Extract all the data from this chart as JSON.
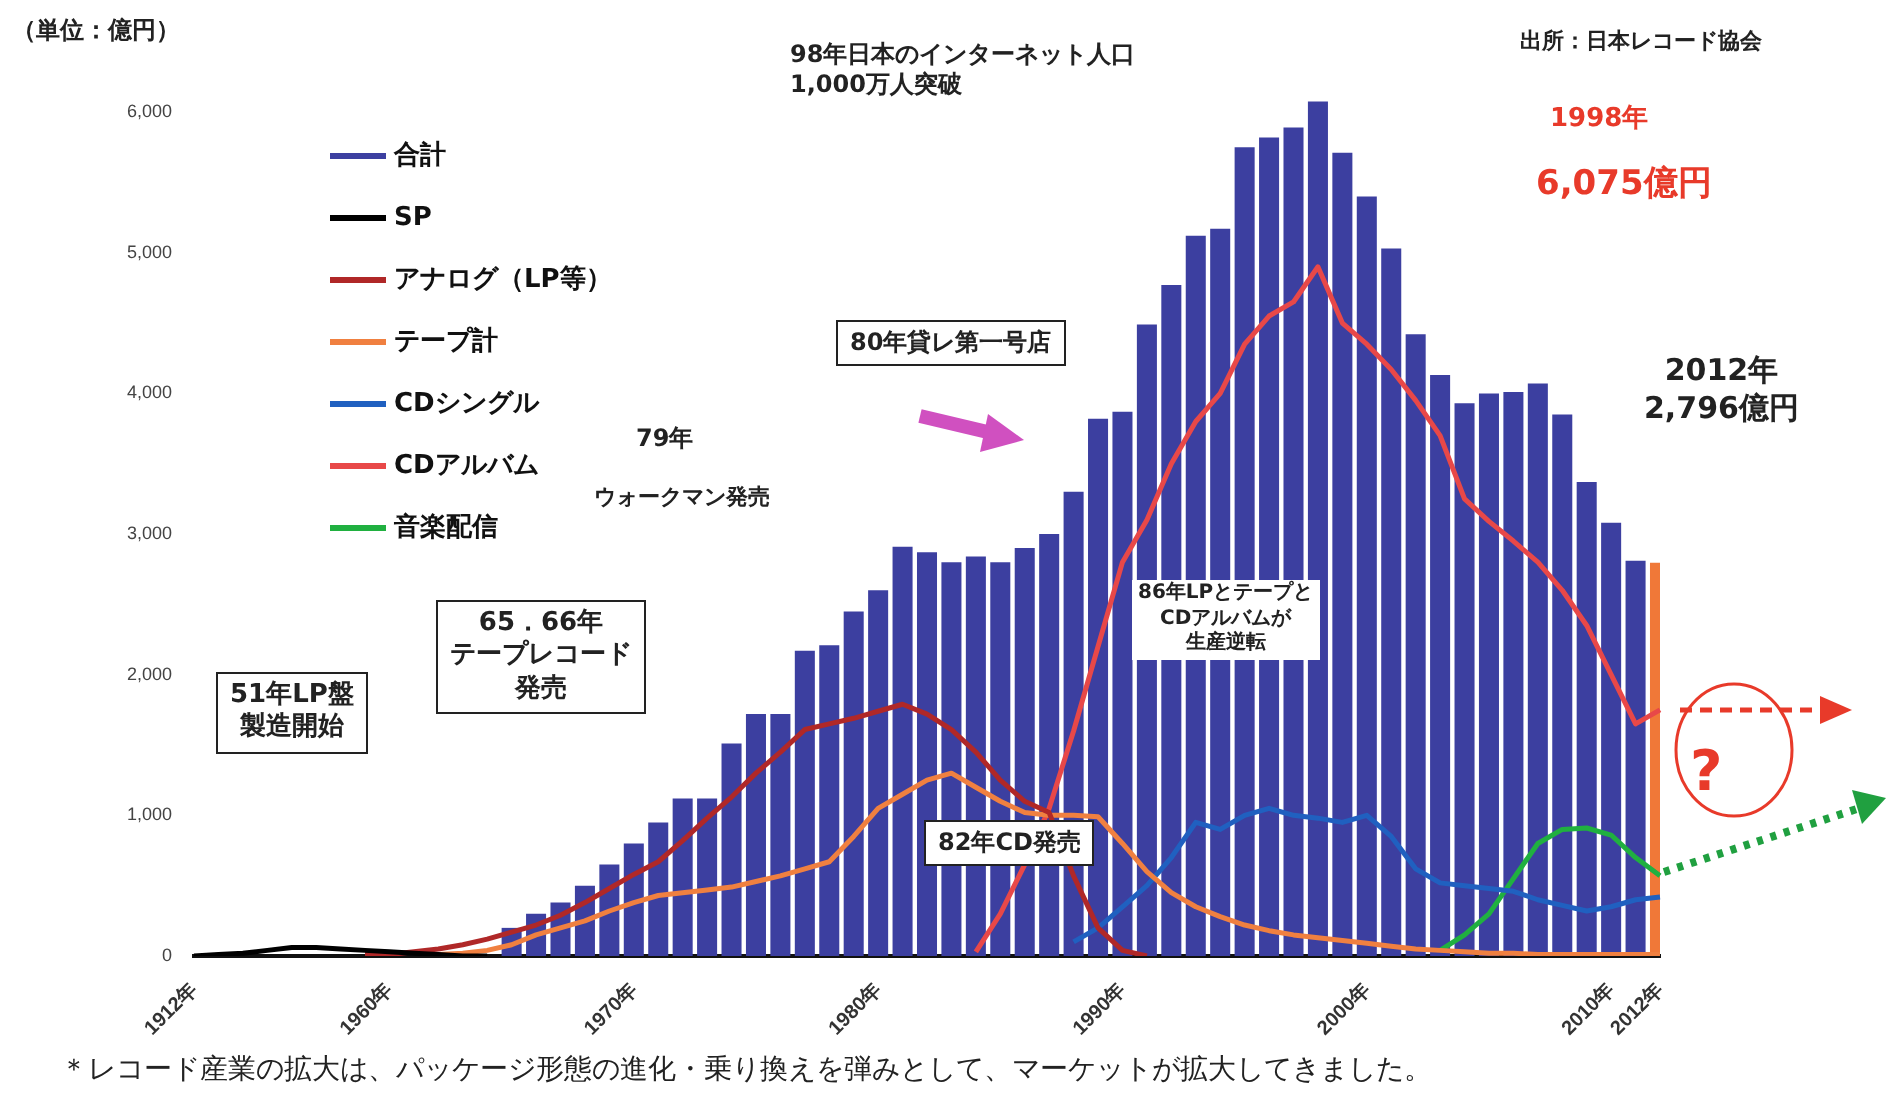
{
  "chart_data": {
    "type": "bar",
    "ylabel": "（単位：億円）",
    "categories": [
      "1912年",
      null,
      null,
      null,
      null,
      null,
      null,
      null,
      "1960年",
      null,
      null,
      null,
      null,
      null,
      null,
      null,
      null,
      null,
      "1970年",
      null,
      null,
      null,
      null,
      null,
      null,
      null,
      null,
      null,
      "1980年",
      null,
      null,
      null,
      null,
      null,
      null,
      null,
      null,
      null,
      "1990年",
      null,
      null,
      null,
      null,
      null,
      null,
      null,
      null,
      null,
      "2000年",
      null,
      null,
      null,
      null,
      null,
      null,
      null,
      null,
      null,
      "2010年",
      null,
      "2012年"
    ],
    "series": [
      {
        "name": "合計",
        "color": "#3c3fa0",
        "colors": [
          "#3c3fa0",
          "#3c3fa0",
          "#3c3fa0",
          "#3c3fa0",
          "#3c3fa0",
          "#3c3fa0",
          "#3c3fa0",
          "#3c3fa0",
          "#3c3fa0",
          "#3c3fa0",
          "#3c3fa0",
          "#3c3fa0",
          "#3c3fa0",
          "#3c3fa0",
          "#3c3fa0",
          "#3c3fa0",
          "#3c3fa0",
          "#3c3fa0",
          "#3c3fa0",
          "#3c3fa0",
          "#3c3fa0",
          "#3c3fa0",
          "#3c3fa0",
          "#3c3fa0",
          "#3c3fa0",
          "#3c3fa0",
          "#3c3fa0",
          "#3c3fa0",
          "#3c3fa0",
          "#3c3fa0",
          "#3c3fa0",
          "#3c3fa0",
          "#3c3fa0",
          "#3c3fa0",
          "#3c3fa0",
          "#3c3fa0",
          "#3c3fa0",
          "#3c3fa0",
          "#3c3fa0",
          "#3c3fa0",
          "#3c3fa0",
          "#3c3fa0",
          "#3c3fa0",
          "#3c3fa0",
          "#3c3fa0",
          "#3c3fa0",
          "#3c3fa0",
          "#3c3fa0",
          "#3c3fa0",
          "#3c3fa0",
          "#3c3fa0",
          "#3c3fa0",
          "#3c3fa0",
          "#3c3fa0",
          "#3c3fa0",
          "#3c3fa0",
          "#3c3fa0",
          "#3c3fa0",
          "#3c3fa0",
          "#3c3fa0",
          "#f07838"
        ],
        "values": [
          null,
          null,
          null,
          null,
          null,
          null,
          null,
          null,
          null,
          null,
          null,
          null,
          null,
          200,
          300,
          380,
          500,
          650,
          800,
          950,
          1120,
          1120,
          1510,
          1720,
          1720,
          2170,
          2210,
          2450,
          2600,
          2910,
          2870,
          2800,
          2840,
          2800,
          2900,
          3000,
          3300,
          3820,
          3870,
          4490,
          4770,
          5120,
          5170,
          5750,
          5820,
          5890,
          6075,
          5710,
          5400,
          5030,
          4420,
          4130,
          3930,
          4000,
          4010,
          4070,
          3850,
          3370,
          3080,
          2810,
          2796
        ]
      },
      {
        "name": "SP",
        "type": "line",
        "color": "#000000",
        "values": [
          0,
          10,
          20,
          40,
          60,
          60,
          50,
          40,
          30,
          20,
          10,
          0,
          0,
          null,
          null,
          null,
          null,
          null,
          null,
          null,
          null,
          null,
          null,
          null,
          null,
          null,
          null,
          null,
          null,
          null,
          null,
          null,
          null,
          null,
          null,
          null,
          null,
          null,
          null,
          null,
          null,
          null,
          null,
          null,
          null,
          null,
          null,
          null,
          null,
          null,
          null,
          null,
          null,
          null,
          null,
          null,
          null,
          null,
          null,
          null,
          null
        ]
      },
      {
        "name": "アナログ（LP等）",
        "type": "line",
        "color": "#b02828",
        "values": [
          null,
          null,
          null,
          null,
          null,
          null,
          null,
          10,
          10,
          30,
          50,
          80,
          120,
          170,
          220,
          290,
          380,
          480,
          580,
          670,
          820,
          980,
          1130,
          1300,
          1450,
          1610,
          1650,
          1690,
          1740,
          1790,
          1720,
          1610,
          1450,
          1250,
          1100,
          1020,
          570,
          200,
          40,
          0,
          null,
          null,
          null,
          null,
          null,
          null,
          null,
          null,
          null,
          null,
          null,
          null,
          null,
          null,
          null,
          null,
          null,
          null,
          null,
          null,
          null
        ]
      },
      {
        "name": "テープ計",
        "type": "line",
        "color": "#f08040",
        "values": [
          null,
          null,
          null,
          null,
          null,
          null,
          null,
          null,
          null,
          null,
          10,
          20,
          40,
          80,
          150,
          200,
          250,
          320,
          380,
          430,
          450,
          470,
          490,
          530,
          570,
          620,
          670,
          850,
          1050,
          1150,
          1250,
          1300,
          1200,
          1100,
          1020,
          1000,
          1000,
          990,
          800,
          600,
          450,
          350,
          280,
          220,
          180,
          150,
          130,
          110,
          90,
          70,
          50,
          40,
          30,
          20,
          20,
          10,
          10,
          10,
          10,
          10,
          10
        ]
      },
      {
        "name": "CDシングル",
        "type": "line",
        "color": "#2060c0",
        "values": [
          null,
          null,
          null,
          null,
          null,
          null,
          null,
          null,
          null,
          null,
          null,
          null,
          null,
          null,
          null,
          null,
          null,
          null,
          null,
          null,
          null,
          null,
          null,
          null,
          null,
          null,
          null,
          null,
          null,
          null,
          null,
          null,
          null,
          null,
          null,
          null,
          100,
          200,
          350,
          500,
          700,
          950,
          900,
          1000,
          1050,
          1000,
          980,
          950,
          1000,
          850,
          620,
          520,
          500,
          480,
          460,
          400,
          360,
          320,
          350,
          400,
          420
        ]
      },
      {
        "name": "CDアルバム",
        "type": "line",
        "color": "#e84848",
        "values": [
          null,
          null,
          null,
          null,
          null,
          null,
          null,
          null,
          null,
          null,
          null,
          null,
          null,
          null,
          null,
          null,
          null,
          null,
          null,
          null,
          null,
          null,
          null,
          null,
          null,
          null,
          null,
          null,
          null,
          null,
          null,
          null,
          30,
          300,
          650,
          1050,
          1600,
          2200,
          2800,
          3100,
          3500,
          3800,
          4000,
          4350,
          4550,
          4650,
          4900,
          4500,
          4350,
          4170,
          3950,
          3700,
          3250,
          3090,
          2950,
          2800,
          2600,
          2350,
          2000,
          1650,
          1750
        ]
      },
      {
        "name": "音楽配信",
        "type": "line",
        "color": "#20b040",
        "values": [
          null,
          null,
          null,
          null,
          null,
          null,
          null,
          null,
          null,
          null,
          null,
          null,
          null,
          null,
          null,
          null,
          null,
          null,
          null,
          null,
          null,
          null,
          null,
          null,
          null,
          null,
          null,
          null,
          null,
          null,
          null,
          null,
          null,
          null,
          null,
          null,
          null,
          null,
          null,
          null,
          null,
          null,
          null,
          null,
          null,
          null,
          null,
          null,
          null,
          null,
          null,
          40,
          150,
          300,
          550,
          800,
          900,
          910,
          860,
          700,
          570
        ]
      }
    ],
    "ylim": [
      0,
      6100
    ],
    "yticks": [
      0,
      {
        "value": 1000,
        "label": "1,000"
      },
      {
        "value": 2000,
        "label": "2,000"
      },
      {
        "value": 3000,
        "label": "3,000"
      },
      {
        "value": 4000,
        "label": "4,000"
      },
      {
        "value": 5000,
        "label": "5,000"
      },
      {
        "value": 6000,
        "label": "6,000"
      }
    ],
    "grid": false,
    "legend": "top left",
    "marker": "none",
    "line_style": "solid",
    "annotations": [
      "出所：日本レコード協会",
      "98年日本のインターネット人口\n1,000万人突破",
      "1998年",
      "6,075億円",
      "80年貸レ第一号店",
      "79年",
      "ウォークマン発売",
      "2012年\n2,796億円",
      "65．66年",
      "テープレコード",
      "発売",
      "51年LP盤",
      "製造開始",
      "86年LPとテープと",
      "CDアルバムが",
      "生産逆転",
      "82年CD発売",
      "?",
      "＊レコード産業の拡大は、パッケージ形態の進化・乗り換えを弾みとして、マーケットが拡大してきました。"
    ]
  }
}
